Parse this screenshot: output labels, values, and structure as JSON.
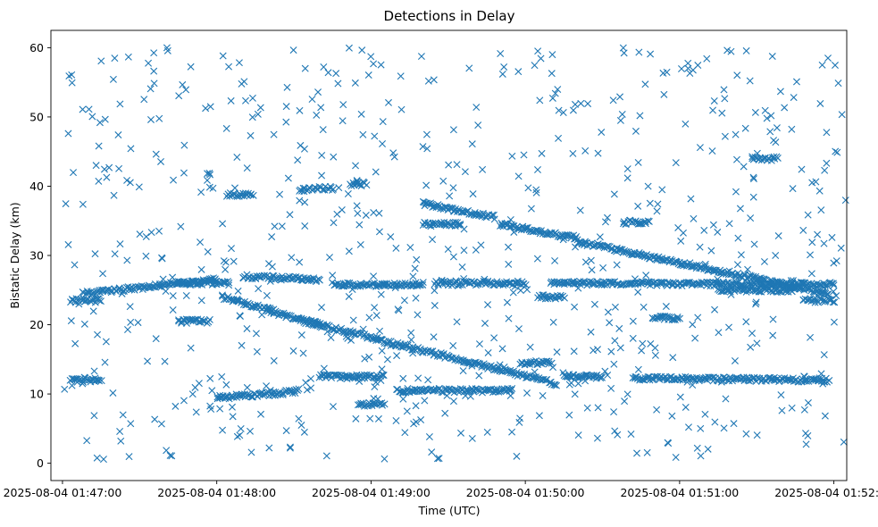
{
  "chart_data": {
    "type": "scatter",
    "title": "Detections in Delay",
    "xlabel": "Time (UTC)",
    "ylabel": "Bistatic Delay (km)",
    "marker": "x",
    "color": "#1f77b4",
    "x_unit": "seconds after 2025-08-04 01:47:00 UTC",
    "xlim": [
      -4.5,
      305
    ],
    "ylim": [
      -2.5,
      62.5
    ],
    "x_ticks": [
      {
        "value": 0,
        "label": "2025-08-04 01:47:00"
      },
      {
        "value": 60,
        "label": "2025-08-04 01:48:00"
      },
      {
        "value": 120,
        "label": "2025-08-04 01:49:00"
      },
      {
        "value": 180,
        "label": "2025-08-04 01:50:00"
      },
      {
        "value": 240,
        "label": "2025-08-04 01:51:00"
      },
      {
        "value": 300,
        "label": "2025-08-04 01:52:00"
      }
    ],
    "y_ticks": [
      {
        "value": 0,
        "label": "0"
      },
      {
        "value": 10,
        "label": "10"
      },
      {
        "value": 20,
        "label": "20"
      },
      {
        "value": 30,
        "label": "30"
      },
      {
        "value": 40,
        "label": "40"
      },
      {
        "value": 50,
        "label": "50"
      },
      {
        "value": 60,
        "label": "60"
      }
    ],
    "series": [
      {
        "name": "detections",
        "tracks": [
          {
            "x_start": 3,
            "x_end": 15,
            "y_start": 12,
            "y_end": 12
          },
          {
            "x_start": 3,
            "x_end": 15,
            "y_start": 23.5,
            "y_end": 23.5
          },
          {
            "x_start": 8,
            "x_end": 60,
            "y_start": 24.5,
            "y_end": 26.5
          },
          {
            "x_start": 45,
            "x_end": 57,
            "y_start": 20.5,
            "y_end": 20.5
          },
          {
            "x_start": 45,
            "x_end": 65,
            "y_start": 26,
            "y_end": 26
          },
          {
            "x_start": 60,
            "x_end": 82,
            "y_start": 9.5,
            "y_end": 10
          },
          {
            "x_start": 64,
            "x_end": 74,
            "y_start": 38.8,
            "y_end": 38.8
          },
          {
            "x_start": 62,
            "x_end": 82,
            "y_start": 24,
            "y_end": 22
          },
          {
            "x_start": 70,
            "x_end": 100,
            "y_start": 27,
            "y_end": 26.5
          },
          {
            "x_start": 80,
            "x_end": 100,
            "y_start": 22,
            "y_end": 20
          },
          {
            "x_start": 82,
            "x_end": 92,
            "y_start": 10,
            "y_end": 10.5
          },
          {
            "x_start": 92,
            "x_end": 105,
            "y_start": 39.5,
            "y_end": 39.8
          },
          {
            "x_start": 94,
            "x_end": 192,
            "y_start": 20.5,
            "y_end": 11.5
          },
          {
            "x_start": 100,
            "x_end": 125,
            "y_start": 12.5,
            "y_end": 12.5
          },
          {
            "x_start": 105,
            "x_end": 140,
            "y_start": 25.8,
            "y_end": 25.8
          },
          {
            "x_start": 112,
            "x_end": 118,
            "y_start": 40.3,
            "y_end": 40.3
          },
          {
            "x_start": 115,
            "x_end": 125,
            "y_start": 8.5,
            "y_end": 8.5
          },
          {
            "x_start": 130,
            "x_end": 175,
            "y_start": 10.5,
            "y_end": 10.5
          },
          {
            "x_start": 140,
            "x_end": 168,
            "y_start": 37.5,
            "y_end": 35.5
          },
          {
            "x_start": 140,
            "x_end": 155,
            "y_start": 34.5,
            "y_end": 34.5
          },
          {
            "x_start": 145,
            "x_end": 180,
            "y_start": 26,
            "y_end": 26
          },
          {
            "x_start": 170,
            "x_end": 200,
            "y_start": 34.5,
            "y_end": 32.5
          },
          {
            "x_start": 178,
            "x_end": 190,
            "y_start": 14.5,
            "y_end": 14.5
          },
          {
            "x_start": 185,
            "x_end": 195,
            "y_start": 24,
            "y_end": 24
          },
          {
            "x_start": 190,
            "x_end": 300,
            "y_start": 26,
            "y_end": 25.8
          },
          {
            "x_start": 195,
            "x_end": 210,
            "y_start": 12.5,
            "y_end": 12.5
          },
          {
            "x_start": 200,
            "x_end": 298,
            "y_start": 32,
            "y_end": 24.5
          },
          {
            "x_start": 218,
            "x_end": 228,
            "y_start": 34.8,
            "y_end": 34.8
          },
          {
            "x_start": 222,
            "x_end": 298,
            "y_start": 12.3,
            "y_end": 12
          },
          {
            "x_start": 230,
            "x_end": 240,
            "y_start": 21,
            "y_end": 21
          },
          {
            "x_start": 255,
            "x_end": 285,
            "y_start": 25,
            "y_end": 25
          },
          {
            "x_start": 268,
            "x_end": 278,
            "y_start": 44,
            "y_end": 44
          },
          {
            "x_start": 288,
            "x_end": 300,
            "y_start": 23.5,
            "y_end": 23.5
          }
        ],
        "scattered_points": 720,
        "scatter_x_range": [
          0,
          305
        ],
        "scatter_y_range": [
          0.5,
          60
        ]
      }
    ]
  }
}
